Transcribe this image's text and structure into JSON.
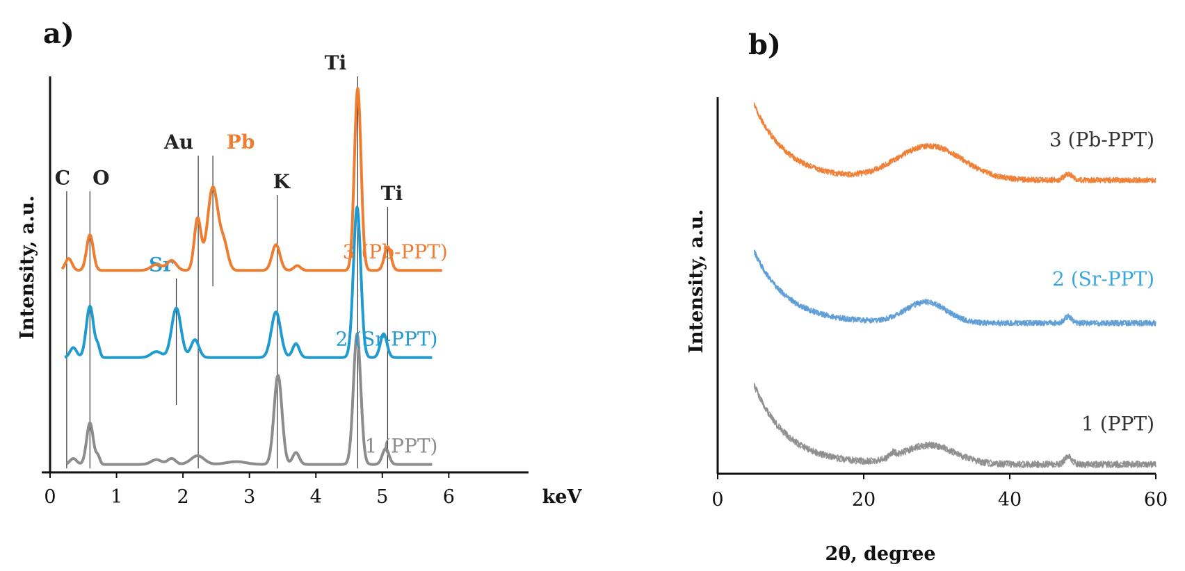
{
  "panels": {
    "a": {
      "label": "a)"
    },
    "b": {
      "label": "b)"
    }
  },
  "colors": {
    "pb": "#ed7d31",
    "sr": "#1f9bd0",
    "ppt_a": "#8c8c8c",
    "pb_b": "#ed7d31",
    "sr_b": "#5b9bd5",
    "ppt_b": "#8c8c8c",
    "axis": "#111111",
    "marker": "#333333"
  },
  "chart_data": [
    {
      "type": "line",
      "title": "a)",
      "xlabel": "keV",
      "ylabel": "Intensity, a.u.",
      "xlim": [
        0,
        7.2
      ],
      "ylim": [
        0,
        100
      ],
      "xticks": [
        "0",
        "1",
        "2",
        "3",
        "4",
        "5",
        "6"
      ],
      "series": [
        {
          "name": "1 (PPT)",
          "color_key": "ppt_a",
          "offset": 2,
          "range": [
            0.25,
            5.75
          ],
          "peaks": [
            [
              0.35,
              1.5,
              0.05
            ],
            [
              0.6,
              10.5,
              0.05
            ],
            [
              0.72,
              2.0,
              0.03
            ],
            [
              1.6,
              1.2,
              0.08
            ],
            [
              1.83,
              1.5,
              0.06
            ],
            [
              2.22,
              2.2,
              0.1
            ],
            [
              2.8,
              0.7,
              0.15
            ],
            [
              3.43,
              22.5,
              0.06
            ],
            [
              3.7,
              3.0,
              0.05
            ],
            [
              4.62,
              33.0,
              0.055
            ],
            [
              5.05,
              4.0,
              0.05
            ]
          ]
        },
        {
          "name": "2 (Sr-PPT)",
          "color_key": "sr",
          "offset": 29,
          "range": [
            0.22,
            5.75
          ],
          "peaks": [
            [
              0.35,
              2.5,
              0.05
            ],
            [
              0.6,
              13.0,
              0.055
            ],
            [
              0.72,
              2.5,
              0.03
            ],
            [
              1.6,
              1.5,
              0.08
            ],
            [
              1.9,
              12.5,
              0.07
            ],
            [
              2.18,
              4.5,
              0.06
            ],
            [
              3.4,
              11.5,
              0.07
            ],
            [
              3.7,
              3.5,
              0.05
            ],
            [
              4.62,
              38.0,
              0.055
            ],
            [
              5.02,
              6.0,
              0.05
            ]
          ]
        },
        {
          "name": "3 (Pb-PPT)",
          "color_key": "pb",
          "offset": 51,
          "range": [
            0.18,
            5.9
          ],
          "peaks": [
            [
              0.28,
              3.0,
              0.05
            ],
            [
              0.6,
              9.0,
              0.05
            ],
            [
              1.6,
              1.5,
              0.08
            ],
            [
              1.83,
              2.5,
              0.07
            ],
            [
              2.22,
              13.0,
              0.05
            ],
            [
              2.45,
              21.0,
              0.08
            ],
            [
              2.62,
              6.0,
              0.06
            ],
            [
              3.4,
              6.5,
              0.06
            ],
            [
              3.72,
              1.2,
              0.05
            ],
            [
              4.63,
              46.0,
              0.05
            ],
            [
              5.08,
              6.0,
              0.05
            ]
          ]
        }
      ],
      "markers": [
        {
          "name": "C",
          "x": 0.25,
          "y_top": 71,
          "y_bottom": 1,
          "color_key": "marker"
        },
        {
          "name": "O",
          "x": 0.6,
          "y_top": 71,
          "y_bottom": 1,
          "color_key": "marker"
        },
        {
          "name": "Au",
          "x": 2.23,
          "y_top": 80,
          "y_bottom": 1,
          "color_key": "marker"
        },
        {
          "name": "Pb",
          "x": 2.45,
          "y_top": 80,
          "y_bottom": 47,
          "color_key": "pb"
        },
        {
          "name": "Sr",
          "x": 1.9,
          "y_top": 49,
          "y_bottom": 17,
          "color_key": "sr"
        },
        {
          "name": "K",
          "x": 3.42,
          "y_top": 70,
          "y_bottom": 1,
          "color_key": "marker"
        },
        {
          "name": "Ti",
          "x": 4.63,
          "y_top": 100,
          "y_bottom": 1,
          "color_key": "marker"
        },
        {
          "name": "Ti",
          "x": 5.08,
          "y_top": 67,
          "y_bottom": 1,
          "color_key": "marker"
        }
      ]
    },
    {
      "type": "line",
      "title": "b)",
      "xlabel": "2θ, degree",
      "ylabel": "Intensity, a.u.",
      "xlim": [
        0,
        60
      ],
      "ylim": [
        0,
        100
      ],
      "xticks": [
        "0",
        "20",
        "40",
        "60"
      ],
      "series": [
        {
          "name": "1 (PPT)",
          "color_key": "ppt_b",
          "range": [
            5,
            60
          ],
          "base": 2.5,
          "decay_amp": 21,
          "decay_scale": 4.5,
          "hump_center": 29,
          "hump_amp": 5,
          "hump_width": 3.5,
          "small_peaks": [
            [
              48,
              2.0,
              0.5
            ],
            [
              24,
              1.2,
              0.4
            ]
          ],
          "noise": 1.8
        },
        {
          "name": "2 (Sr-PPT)",
          "color_key": "sr_b",
          "range": [
            5,
            60
          ],
          "base": 40,
          "decay_amp": 19,
          "decay_scale": 4.5,
          "hump_center": 28.5,
          "hump_amp": 5.5,
          "hump_width": 2.8,
          "small_peaks": [
            [
              48,
              1.8,
              0.5
            ]
          ],
          "noise": 1.5
        },
        {
          "name": "3 (Pb-PPT)",
          "color_key": "pb_b",
          "range": [
            5,
            60
          ],
          "base": 78,
          "decay_amp": 20,
          "decay_scale": 4.5,
          "hump_center": 29,
          "hump_amp": 9,
          "hump_width": 4.5,
          "small_peaks": [
            [
              48,
              1.5,
              0.6
            ]
          ],
          "noise": 1.5
        }
      ]
    }
  ]
}
